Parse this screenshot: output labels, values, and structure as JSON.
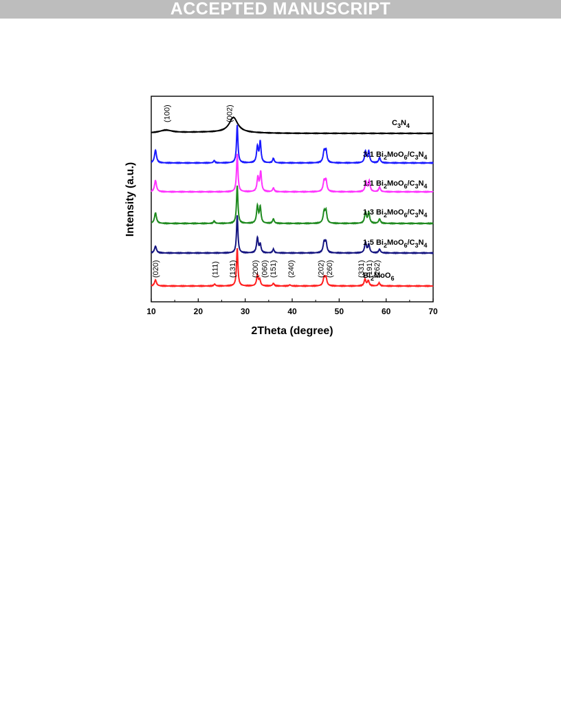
{
  "banner": {
    "text": "ACCEPTED MANUSCRIPT"
  },
  "chart_data": {
    "type": "line",
    "xlabel": "2Theta (degree)",
    "ylabel": "Intensity (a.u.)",
    "xlim": [
      10,
      70
    ],
    "xticks": [
      10,
      20,
      30,
      40,
      50,
      60,
      70
    ],
    "yticks_shown": false,
    "grid": false,
    "stacked_offsets": true,
    "series": [
      {
        "name": "C3N4",
        "label_main": "C",
        "label_sub1": "3",
        "label_mid": "N",
        "label_sub2": "4",
        "color": "#000000",
        "peaks": [
          {
            "x": 13.1,
            "h": 0.1,
            "w": 1.6
          },
          {
            "x": 27.5,
            "h": 0.55,
            "w": 1.1
          }
        ]
      },
      {
        "name": "3:1 Bi2MoO6/C3N4",
        "color": "#1a1aff",
        "peaks": [
          {
            "x": 10.9,
            "h": 0.34,
            "w": 0.25
          },
          {
            "x": 28.3,
            "h": 1.0,
            "w": 0.18
          },
          {
            "x": 32.6,
            "h": 0.42,
            "w": 0.22
          },
          {
            "x": 33.2,
            "h": 0.55,
            "w": 0.2
          },
          {
            "x": 36.0,
            "h": 0.12,
            "w": 0.2
          },
          {
            "x": 46.8,
            "h": 0.3,
            "w": 0.25
          },
          {
            "x": 47.2,
            "h": 0.3,
            "w": 0.22
          },
          {
            "x": 55.6,
            "h": 0.3,
            "w": 0.22
          },
          {
            "x": 56.3,
            "h": 0.3,
            "w": 0.22
          },
          {
            "x": 58.6,
            "h": 0.14,
            "w": 0.22
          },
          {
            "x": 23.4,
            "h": 0.06,
            "w": 0.2
          }
        ]
      },
      {
        "name": "1:1 Bi2MoO6/C3N4",
        "color": "#ff33ff",
        "peaks": [
          {
            "x": 10.9,
            "h": 0.3,
            "w": 0.25
          },
          {
            "x": 28.3,
            "h": 1.0,
            "w": 0.18
          },
          {
            "x": 32.7,
            "h": 0.38,
            "w": 0.22
          },
          {
            "x": 33.3,
            "h": 0.52,
            "w": 0.2
          },
          {
            "x": 36.0,
            "h": 0.1,
            "w": 0.2
          },
          {
            "x": 46.8,
            "h": 0.28,
            "w": 0.25
          },
          {
            "x": 47.2,
            "h": 0.28,
            "w": 0.22
          },
          {
            "x": 55.7,
            "h": 0.26,
            "w": 0.22
          },
          {
            "x": 56.4,
            "h": 0.28,
            "w": 0.22
          },
          {
            "x": 58.6,
            "h": 0.12,
            "w": 0.22
          }
        ]
      },
      {
        "name": "1:3 Bi2MoO6/C3N4",
        "color": "#1f8a1f",
        "peaks": [
          {
            "x": 10.9,
            "h": 0.28,
            "w": 0.25
          },
          {
            "x": 28.3,
            "h": 1.0,
            "w": 0.18
          },
          {
            "x": 32.6,
            "h": 0.45,
            "w": 0.22
          },
          {
            "x": 33.2,
            "h": 0.42,
            "w": 0.2
          },
          {
            "x": 36.0,
            "h": 0.12,
            "w": 0.2
          },
          {
            "x": 46.8,
            "h": 0.3,
            "w": 0.25
          },
          {
            "x": 47.2,
            "h": 0.3,
            "w": 0.22
          },
          {
            "x": 55.6,
            "h": 0.3,
            "w": 0.22
          },
          {
            "x": 56.3,
            "h": 0.28,
            "w": 0.22
          },
          {
            "x": 58.6,
            "h": 0.12,
            "w": 0.22
          },
          {
            "x": 23.4,
            "h": 0.06,
            "w": 0.2
          }
        ]
      },
      {
        "name": "1:5 Bi2MoO6/C3N4",
        "color": "#141480",
        "peaks": [
          {
            "x": 10.9,
            "h": 0.18,
            "w": 0.25
          },
          {
            "x": 28.3,
            "h": 1.0,
            "w": 0.18
          },
          {
            "x": 32.6,
            "h": 0.4,
            "w": 0.22
          },
          {
            "x": 33.2,
            "h": 0.22,
            "w": 0.2
          },
          {
            "x": 36.0,
            "h": 0.1,
            "w": 0.2
          },
          {
            "x": 46.8,
            "h": 0.28,
            "w": 0.25
          },
          {
            "x": 47.2,
            "h": 0.26,
            "w": 0.22
          },
          {
            "x": 55.6,
            "h": 0.28,
            "w": 0.22
          },
          {
            "x": 56.3,
            "h": 0.22,
            "w": 0.22
          },
          {
            "x": 58.6,
            "h": 0.1,
            "w": 0.22
          }
        ]
      },
      {
        "name": "Bi2MoO6",
        "color": "#ff2020",
        "peaks": [
          {
            "x": 10.9,
            "h": 0.16,
            "w": 0.25
          },
          {
            "x": 23.5,
            "h": 0.05,
            "w": 0.2
          },
          {
            "x": 28.3,
            "h": 1.0,
            "w": 0.18
          },
          {
            "x": 32.6,
            "h": 0.28,
            "w": 0.22
          },
          {
            "x": 33.1,
            "h": 0.15,
            "w": 0.2
          },
          {
            "x": 36.0,
            "h": 0.07,
            "w": 0.2
          },
          {
            "x": 39.5,
            "h": 0.03,
            "w": 0.2
          },
          {
            "x": 46.8,
            "h": 0.22,
            "w": 0.25
          },
          {
            "x": 47.2,
            "h": 0.2,
            "w": 0.22
          },
          {
            "x": 55.5,
            "h": 0.18,
            "w": 0.22
          },
          {
            "x": 56.2,
            "h": 0.14,
            "w": 0.22
          },
          {
            "x": 58.5,
            "h": 0.08,
            "w": 0.22
          }
        ]
      }
    ],
    "series_labels": [
      {
        "prefix": "",
        "parts": [
          [
            "C",
            ""
          ],
          [
            "3",
            "sub"
          ],
          [
            "N",
            ""
          ],
          [
            "4",
            "sub"
          ]
        ]
      },
      {
        "prefix": "3:1 ",
        "parts": [
          [
            "Bi",
            ""
          ],
          [
            "2",
            "sub"
          ],
          [
            "MoO",
            ""
          ],
          [
            "6",
            "sub"
          ],
          [
            "/C",
            ""
          ],
          [
            "3",
            "sub"
          ],
          [
            "N",
            ""
          ],
          [
            "4",
            "sub"
          ]
        ]
      },
      {
        "prefix": "1:1 ",
        "parts": [
          [
            "Bi",
            ""
          ],
          [
            "2",
            "sub"
          ],
          [
            "MoO",
            ""
          ],
          [
            "6",
            "sub"
          ],
          [
            "/C",
            ""
          ],
          [
            "3",
            "sub"
          ],
          [
            "N",
            ""
          ],
          [
            "4",
            "sub"
          ]
        ]
      },
      {
        "prefix": "1:3 ",
        "parts": [
          [
            "Bi",
            ""
          ],
          [
            "2",
            "sub"
          ],
          [
            "MoO",
            ""
          ],
          [
            "6",
            "sub"
          ],
          [
            "/C",
            ""
          ],
          [
            "3",
            "sub"
          ],
          [
            "N",
            ""
          ],
          [
            "4",
            "sub"
          ]
        ]
      },
      {
        "prefix": "1:5 ",
        "parts": [
          [
            "Bi",
            ""
          ],
          [
            "2",
            "sub"
          ],
          [
            "MoO",
            ""
          ],
          [
            "6",
            "sub"
          ],
          [
            "/C",
            ""
          ],
          [
            "3",
            "sub"
          ],
          [
            "N",
            ""
          ],
          [
            "4",
            "sub"
          ]
        ]
      },
      {
        "prefix": "",
        "parts": [
          [
            "Bi",
            ""
          ],
          [
            "2",
            "sub"
          ],
          [
            "MoO",
            ""
          ],
          [
            "6",
            "sub"
          ]
        ]
      }
    ],
    "annotations": [
      {
        "text": "(100)",
        "x": 13.3,
        "series": 0
      },
      {
        "text": "(002)",
        "x": 26.6,
        "series": 0
      },
      {
        "text": "(020)",
        "x": 10.9,
        "series": 5
      },
      {
        "text": "(111)",
        "x": 23.5,
        "series": 5
      },
      {
        "text": "(131)",
        "x": 27.3,
        "series": 5
      },
      {
        "text": "(200)",
        "x": 32.1,
        "series": 5
      },
      {
        "text": "(060)",
        "x": 34.1,
        "series": 5
      },
      {
        "text": "(151)",
        "x": 35.9,
        "series": 5
      },
      {
        "text": "(240)",
        "x": 39.7,
        "series": 5
      },
      {
        "text": "(202)",
        "x": 46.1,
        "series": 5
      },
      {
        "text": "(260)",
        "x": 47.9,
        "series": 5
      },
      {
        "text": "(331)",
        "x": 54.6,
        "series": 5
      },
      {
        "text": "(191)",
        "x": 56.4,
        "series": 5
      },
      {
        "text": "(262)",
        "x": 58.0,
        "series": 5
      }
    ]
  }
}
